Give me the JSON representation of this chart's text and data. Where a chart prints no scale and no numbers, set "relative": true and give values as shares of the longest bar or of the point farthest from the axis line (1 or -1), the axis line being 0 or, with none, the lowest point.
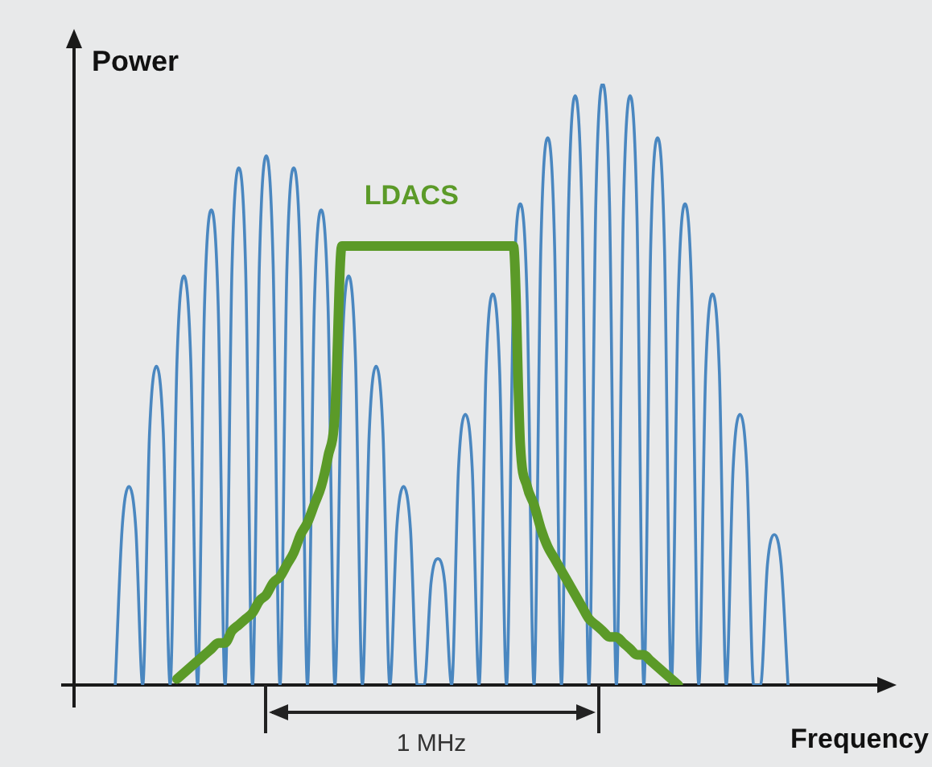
{
  "chart_data": {
    "type": "line",
    "relative": true,
    "ylabel": "Power",
    "xlabel": "Frequency",
    "annotations": [
      "1 MHz"
    ],
    "grid": false,
    "legend": false,
    "marker": "none",
    "line_style": "solid",
    "categories": [
      null,
      null,
      null,
      null,
      null,
      null,
      null,
      null,
      null,
      null,
      null,
      null,
      null,
      null,
      null,
      null,
      null,
      null,
      null,
      null,
      null,
      null,
      null,
      null,
      null,
      null,
      null,
      null,
      null,
      null,
      null,
      null,
      null,
      null,
      null,
      null,
      null,
      null,
      null,
      null,
      null,
      null,
      null,
      null,
      null,
      null,
      null,
      null,
      null,
      null,
      null,
      null,
      null,
      null,
      null,
      null,
      null,
      null,
      null,
      null,
      null,
      null,
      null,
      null,
      null,
      null,
      null,
      null,
      null,
      null,
      null,
      null,
      null,
      null,
      null,
      null,
      null,
      null,
      null,
      null,
      null,
      null,
      null,
      null,
      null,
      null,
      null,
      null,
      null,
      null,
      null,
      null,
      null,
      null,
      null,
      null,
      null,
      null,
      null,
      null,
      null,
      null,
      null,
      null,
      null,
      null,
      null,
      null,
      null,
      null,
      null,
      null,
      null,
      null,
      null,
      null,
      null,
      null
    ],
    "series": [
      {
        "color": "#4a87c0",
        "values": [
          null,
          null,
          null,
          null,
          null,
          null,
          0,
          0.26,
          0.33,
          0.26,
          0,
          0.42,
          0.53,
          0.42,
          0,
          0.54,
          0.68,
          0.54,
          0,
          0.63,
          0.79,
          0.63,
          0,
          0.69,
          0.86,
          0.69,
          0,
          0.7,
          0.88,
          0.7,
          0,
          0.69,
          0.86,
          0.69,
          0,
          0.63,
          0.79,
          0.63,
          0,
          0.54,
          0.68,
          0.54,
          0,
          0.42,
          0.53,
          0.42,
          0,
          0.26,
          0.33,
          0.26,
          0,
          0,
          0.17,
          0.21,
          0.17,
          0,
          0.36,
          0.45,
          0.36,
          0,
          0.52,
          0.65,
          0.52,
          0,
          0.64,
          0.8,
          0.64,
          0,
          0.73,
          0.91,
          0.73,
          0,
          0.78,
          0.98,
          0.78,
          0,
          0.8,
          1,
          0.8,
          0,
          0.78,
          0.98,
          0.78,
          0,
          0.73,
          0.91,
          0.73,
          0,
          0.64,
          0.8,
          0.64,
          0,
          0.52,
          0.65,
          0.52,
          0,
          0.36,
          0.45,
          0.36,
          0,
          0,
          0.2,
          0.25,
          0.2,
          0,
          null,
          null,
          null,
          null,
          null,
          null,
          null,
          null,
          null,
          null,
          null,
          null,
          null
        ]
      },
      {
        "name": "LDACS",
        "color": "#5b9a28",
        "values": [
          null,
          null,
          null,
          null,
          null,
          null,
          null,
          null,
          null,
          null,
          null,
          null,
          null,
          null,
          null,
          0.01,
          0.02,
          0.03,
          0.04,
          0.05,
          0.06,
          0.07,
          0.07,
          0.09,
          0.1,
          0.11,
          0.12,
          0.14,
          0.15,
          0.17,
          0.18,
          0.2,
          0.22,
          0.25,
          0.27,
          0.3,
          0.33,
          0.38,
          0.45,
          0.73,
          0.73,
          0.73,
          0.73,
          0.73,
          0.73,
          0.73,
          0.73,
          0.73,
          0.73,
          0.73,
          0.73,
          0.73,
          0.73,
          0.73,
          0.73,
          0.73,
          0.73,
          0.73,
          0.73,
          0.73,
          0.73,
          0.73,
          0.73,
          0.73,
          0.73,
          0.4,
          0.33,
          0.3,
          0.26,
          0.23,
          0.21,
          0.19,
          0.17,
          0.15,
          0.13,
          0.11,
          0.1,
          0.09,
          0.08,
          0.08,
          0.07,
          0.06,
          0.05,
          0.05,
          0.04,
          0.03,
          0.02,
          0.01,
          0,
          null,
          null,
          null,
          null,
          null,
          null,
          null,
          null,
          null,
          null,
          null,
          null,
          null,
          null,
          null,
          null,
          null,
          null,
          null,
          null,
          null,
          null,
          null,
          null,
          null,
          null,
          null,
          null,
          null
        ]
      }
    ]
  }
}
